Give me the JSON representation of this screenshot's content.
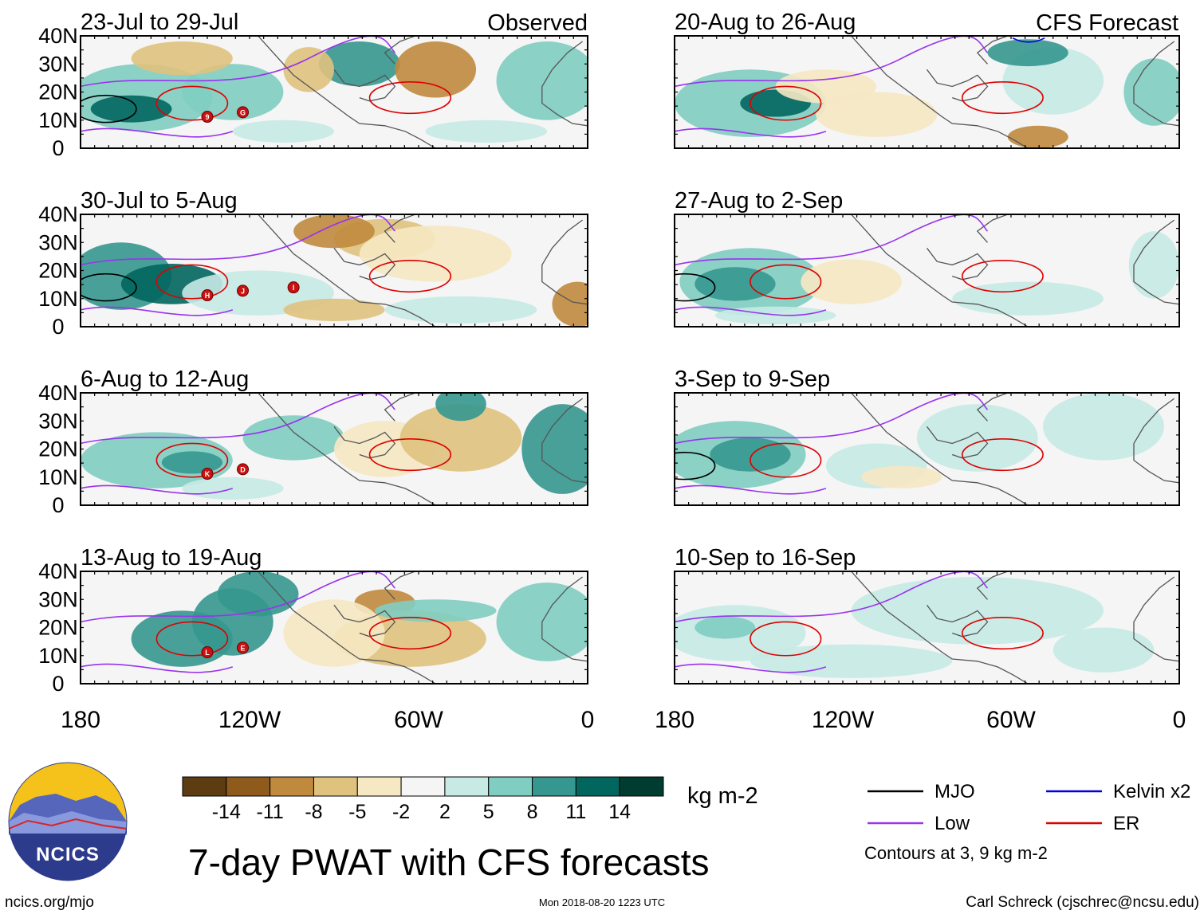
{
  "title": "7-day PWAT with CFS forecasts",
  "logo": {
    "text": "NCICS"
  },
  "footer": {
    "left": "ncics.org/mjo",
    "center": "Mon 2018-08-20 1223 UTC",
    "right": "Carl Schreck (cjschrec@ncsu.edu)"
  },
  "column_labels": {
    "observed": "Observed",
    "forecast": "CFS Forecast"
  },
  "colorbar": {
    "unit": "kg m-2",
    "ticks": [
      "-14",
      "-11",
      "-8",
      "-5",
      "-2",
      "2",
      "5",
      "8",
      "11",
      "14"
    ],
    "colors": [
      "#5e3c12",
      "#8f5b1c",
      "#c08a3e",
      "#dfc27d",
      "#f6e8c3",
      "#f5f5f5",
      "#c7eae5",
      "#80cdc1",
      "#35978f",
      "#01665e",
      "#003c30"
    ]
  },
  "legend": {
    "items": [
      {
        "label": "MJO",
        "color": "#000000"
      },
      {
        "label": "Kelvin x2",
        "color": "#0000dd"
      },
      {
        "label": "Low",
        "color": "#9933ee"
      },
      {
        "label": "ER",
        "color": "#dd0000"
      }
    ],
    "note": "Contours at 3, 9 kg m-2"
  },
  "chart_data": [
    {
      "type": "map",
      "title": "23-Jul to 29-Jul",
      "column": "Observed",
      "xlabel": "",
      "ylabel": "",
      "xlim": [
        -180,
        0
      ],
      "ylim": [
        0,
        40
      ],
      "x_ticks": [
        "180",
        "120W",
        "60W",
        "0"
      ],
      "y_ticks": [
        "40N",
        "30N",
        "20N",
        "10N",
        "0"
      ],
      "storm_markers": [
        "9",
        "G"
      ]
    },
    {
      "type": "map",
      "title": "30-Jul to 5-Aug",
      "column": "Observed",
      "xlim": [
        -180,
        0
      ],
      "ylim": [
        0,
        40
      ],
      "x_ticks": [
        "180",
        "120W",
        "60W",
        "0"
      ],
      "y_ticks": [
        "40N",
        "30N",
        "20N",
        "10N",
        "0"
      ],
      "storm_markers": [
        "H",
        "J",
        "I"
      ]
    },
    {
      "type": "map",
      "title": "6-Aug to 12-Aug",
      "column": "Observed",
      "xlim": [
        -180,
        0
      ],
      "ylim": [
        0,
        40
      ],
      "x_ticks": [
        "180",
        "120W",
        "60W",
        "0"
      ],
      "y_ticks": [
        "40N",
        "30N",
        "20N",
        "10N",
        "0"
      ],
      "storm_markers": [
        "K",
        "D"
      ]
    },
    {
      "type": "map",
      "title": "13-Aug to 19-Aug",
      "column": "Observed",
      "xlim": [
        -180,
        0
      ],
      "ylim": [
        0,
        40
      ],
      "x_ticks": [
        "180",
        "120W",
        "60W",
        "0"
      ],
      "y_ticks": [
        "40N",
        "30N",
        "20N",
        "10N",
        "0"
      ],
      "storm_markers": [
        "L",
        "E"
      ]
    },
    {
      "type": "map",
      "title": "20-Aug to 26-Aug",
      "column": "CFS Forecast",
      "xlim": [
        -180,
        0
      ],
      "ylim": [
        0,
        40
      ],
      "x_ticks": [
        "180",
        "120W",
        "60W",
        "0"
      ],
      "storm_markers": []
    },
    {
      "type": "map",
      "title": "27-Aug to 2-Sep",
      "column": "CFS Forecast",
      "xlim": [
        -180,
        0
      ],
      "ylim": [
        0,
        40
      ],
      "x_ticks": [
        "180",
        "120W",
        "60W",
        "0"
      ],
      "storm_markers": []
    },
    {
      "type": "map",
      "title": "3-Sep to 9-Sep",
      "column": "CFS Forecast",
      "xlim": [
        -180,
        0
      ],
      "ylim": [
        0,
        40
      ],
      "x_ticks": [
        "180",
        "120W",
        "60W",
        "0"
      ],
      "storm_markers": []
    },
    {
      "type": "map",
      "title": "10-Sep to 16-Sep",
      "column": "CFS Forecast",
      "xlim": [
        -180,
        0
      ],
      "ylim": [
        0,
        40
      ],
      "x_ticks": [
        "180",
        "120W",
        "60W",
        "0"
      ],
      "storm_markers": []
    }
  ]
}
